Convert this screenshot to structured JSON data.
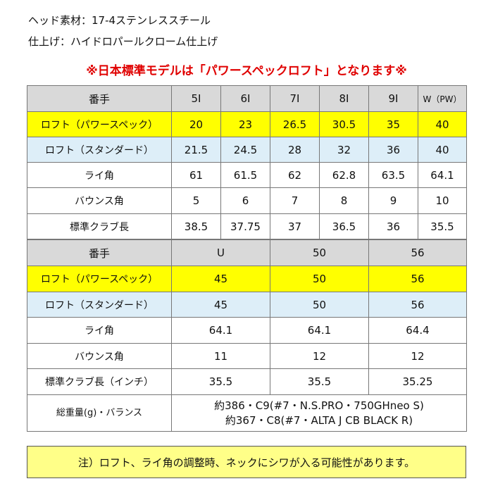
{
  "info": {
    "head_material": "ヘッド素材：17-4ステンレススチール",
    "finish": "仕上げ：ハイドロパールクローム仕上げ"
  },
  "notice": "※日本標準モデルは「パワースペックロフト」となります※",
  "table1": {
    "header": [
      "番手",
      "5I",
      "6I",
      "7I",
      "8I",
      "9I",
      "W（PW）"
    ],
    "rows": [
      {
        "label": "ロフト（パワースペック）",
        "values": [
          "20",
          "23",
          "26.5",
          "30.5",
          "35",
          "40"
        ]
      },
      {
        "label": "ロフト（スタンダード）",
        "values": [
          "21.5",
          "24.5",
          "28",
          "32",
          "36",
          "40"
        ]
      },
      {
        "label": "ライ角",
        "values": [
          "61",
          "61.5",
          "62",
          "62.8",
          "63.5",
          "64.1"
        ]
      },
      {
        "label": "バウンス角",
        "values": [
          "5",
          "6",
          "7",
          "8",
          "9",
          "10"
        ]
      },
      {
        "label": "標準クラブ長",
        "values": [
          "38.5",
          "37.75",
          "37",
          "36.5",
          "36",
          "35.5"
        ]
      }
    ]
  },
  "table2": {
    "header": [
      "番手",
      "U",
      "50",
      "56"
    ],
    "rows": [
      {
        "label": "ロフト（パワースペック）",
        "values": [
          "45",
          "50",
          "56"
        ]
      },
      {
        "label": "ロフト（スタンダード）",
        "values": [
          "45",
          "50",
          "56"
        ]
      },
      {
        "label": "ライ角",
        "values": [
          "64.1",
          "64.1",
          "64.4"
        ]
      },
      {
        "label": "バウンス角",
        "values": [
          "11",
          "12",
          "12"
        ]
      },
      {
        "label": "標準クラブ長（インチ）",
        "values": [
          "35.5",
          "35.5",
          "35.25"
        ]
      }
    ],
    "weight": {
      "label": "総重量(g)・バランス",
      "lines": [
        "約386・C9(#7・N.S.PRO・750GHneo S)",
        "約367・C8(#7・ALTA J CB BLACK R)"
      ]
    }
  },
  "note": "注）ロフト、ライ角の調整時、ネックにシワが入る可能性があります。",
  "colors": {
    "notice": "#e00000",
    "power_spec_row": "#ffff00",
    "standard_row": "#ddeef8",
    "header_row": "#d9d9d9",
    "note_box": "#ffff88"
  }
}
